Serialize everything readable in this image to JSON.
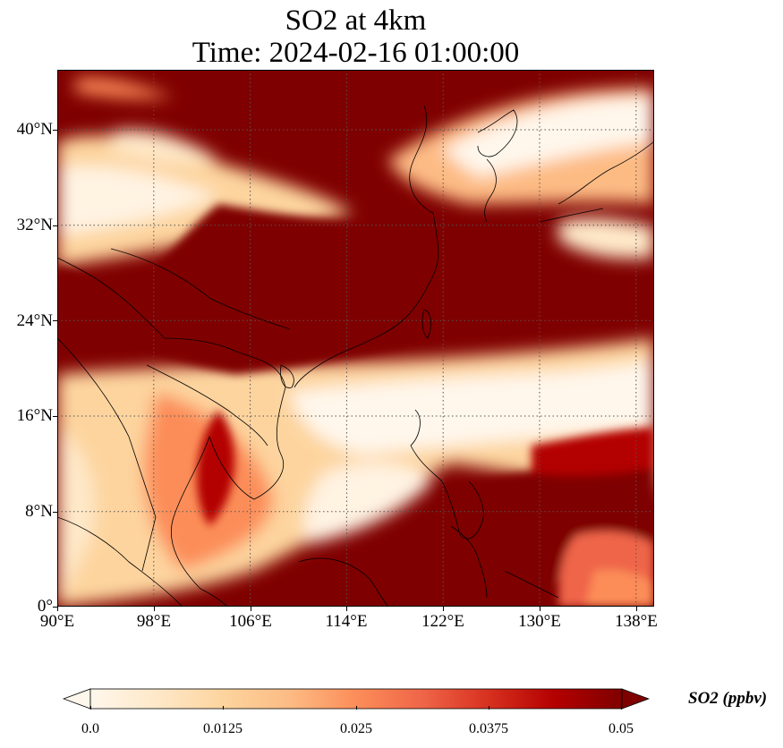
{
  "title": {
    "line1": "SO2 at 4km",
    "line2": "Time: 2024-02-16 01:00:00"
  },
  "axes": {
    "x_ticks": [
      "90°E",
      "98°E",
      "106°E",
      "114°E",
      "122°E",
      "130°E",
      "138°E"
    ],
    "y_ticks": [
      "40°N",
      "32°N",
      "24°N",
      "16°N",
      "8°N",
      "0°"
    ],
    "x_range_deg": [
      90,
      139.5
    ],
    "y_range_deg": [
      0,
      45
    ],
    "grid": "dotted"
  },
  "colorbar": {
    "label": "SO2 (ppbv)",
    "ticks": [
      "0.0",
      "0.0125",
      "0.025",
      "0.0375",
      "0.05"
    ],
    "range": [
      0,
      0.05
    ],
    "extend": "both",
    "colormap": "OrRd",
    "colors": [
      "#fff7ec",
      "#fee8c8",
      "#fdd49e",
      "#fdbb84",
      "#fc8d59",
      "#ef6548",
      "#d7301f",
      "#b30000",
      "#7f0000"
    ]
  }
}
